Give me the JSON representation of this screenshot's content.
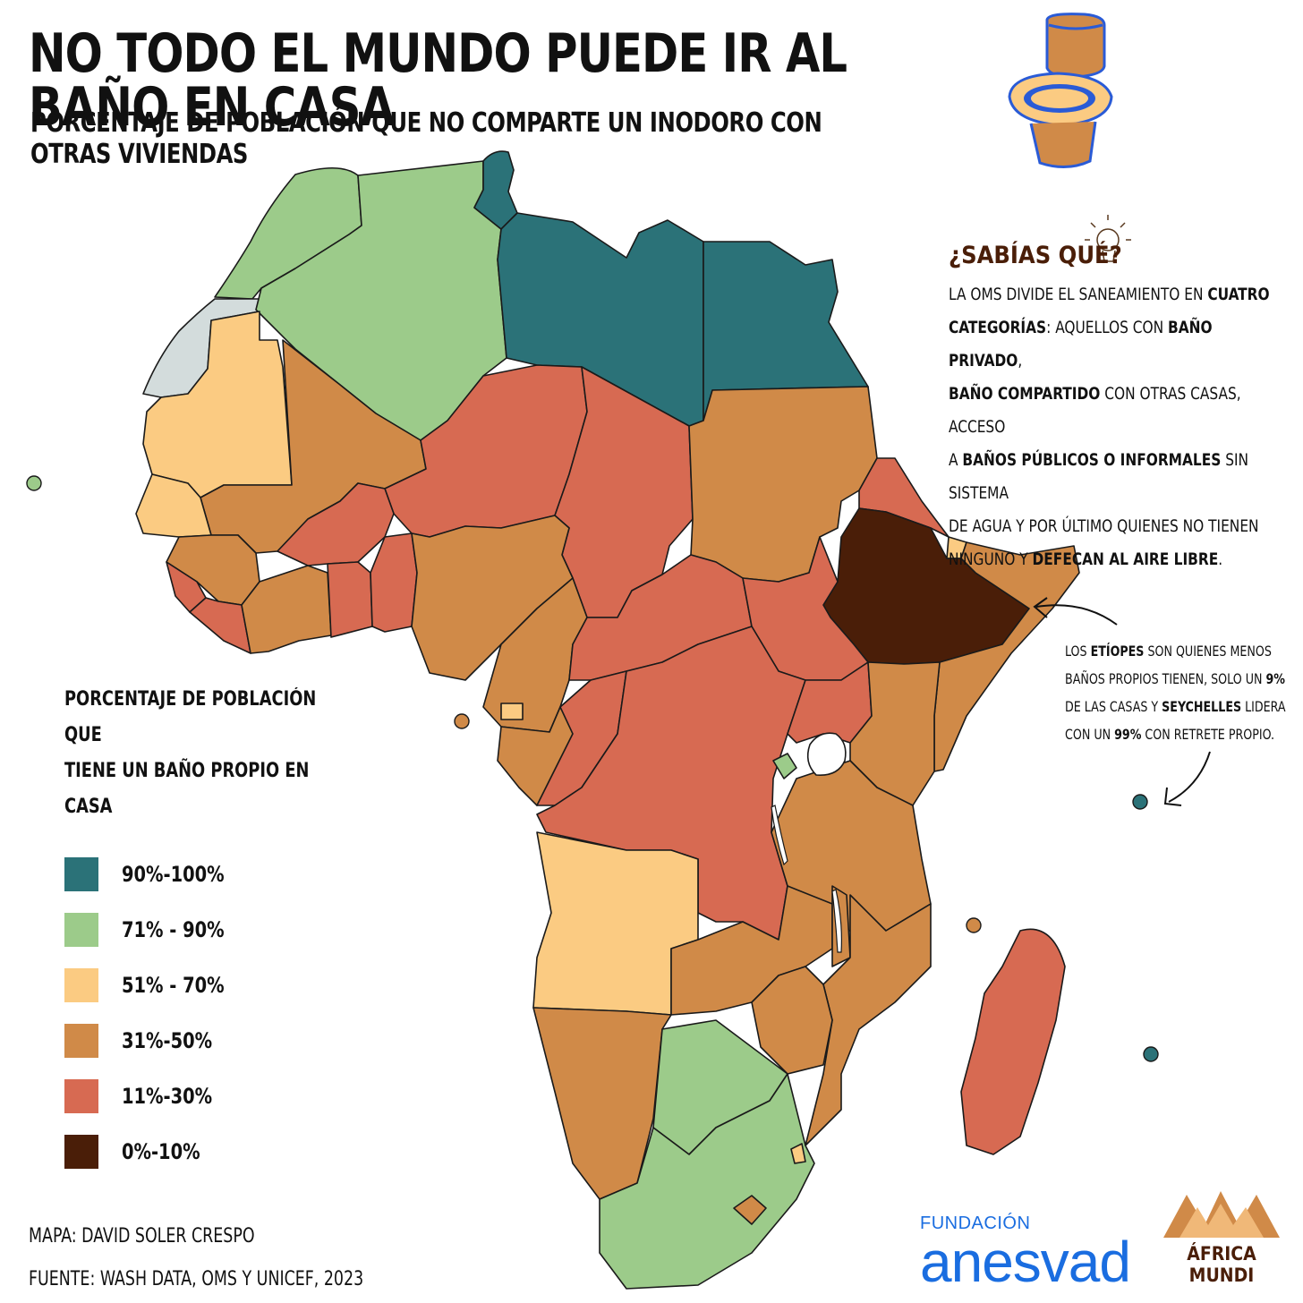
{
  "header": {
    "title": "NO TODO EL MUNDO PUEDE IR AL BAÑO EN CASA",
    "subtitle": "PORCENTAJE DE POBLACIÓN QUE NO COMPARTE UN INODORO CON OTRAS VIVIENDAS"
  },
  "info": {
    "title": "¿SABÍAS QUÉ?",
    "lines": [
      [
        "LA OMS DIVIDE EL SANEAMIENTO EN ",
        "CUATRO"
      ],
      [
        "CATEGORÍAS",
        ": AQUELLOS CON ",
        "BAÑO PRIVADO",
        ","
      ],
      [
        "BAÑO COMPARTIDO",
        " CON OTRAS CASAS, ACCESO"
      ],
      [
        "A ",
        "BAÑOS PÚBLICOS O INFORMALES",
        " SIN SISTEMA"
      ],
      [
        "DE AGUA Y POR ÚLTIMO QUIENES NO TIENEN"
      ],
      [
        "NINGUNO Y ",
        "DEFECAN AL AIRE LIBRE",
        "."
      ]
    ]
  },
  "callout": {
    "lines": [
      [
        "LOS ",
        "ETÍOPES",
        " SON QUIENES MENOS"
      ],
      [
        "BAÑOS PROPIOS TIENEN, SOLO UN ",
        "9%"
      ],
      [
        "DE LAS CASAS Y ",
        "SEYCHELLES",
        " LIDERA"
      ],
      [
        "CON UN ",
        "99%",
        " CON RETRETE PROPIO."
      ]
    ]
  },
  "legend": {
    "title_line1": "PORCENTAJE DE POBLACIÓN QUE",
    "title_line2": "TIENE UN BAÑO PROPIO EN CASA",
    "items": [
      {
        "label": "90%-100%",
        "color": "#2b7278"
      },
      {
        "label": "71% - 90%",
        "color": "#9ccb8a"
      },
      {
        "label": "51% - 70%",
        "color": "#fbcb82"
      },
      {
        "label": "31%-50%",
        "color": "#d08a48"
      },
      {
        "label": "11%-30%",
        "color": "#d76a52"
      },
      {
        "label": "0%-10%",
        "color": "#4a1e08"
      }
    ]
  },
  "credits": {
    "map": "MAPA: DAVID SOLER CRESPO",
    "source": "FUENTE: WASH DATA, OMS Y UNICEF, 2023"
  },
  "logos": {
    "anesvad_small": "FUNDACIÓN",
    "anesvad_big": "anesvad",
    "africa_line1": "ÁFRICA",
    "africa_line2": "MUNDI"
  },
  "colors": {
    "c90": "#2b7278",
    "c71": "#9ccb8a",
    "c51": "#fbcb82",
    "c31": "#d08a48",
    "c11": "#d76a52",
    "c0": "#4a1e08",
    "nodata": "#d3dcdc",
    "border": "#1a1a1a"
  }
}
